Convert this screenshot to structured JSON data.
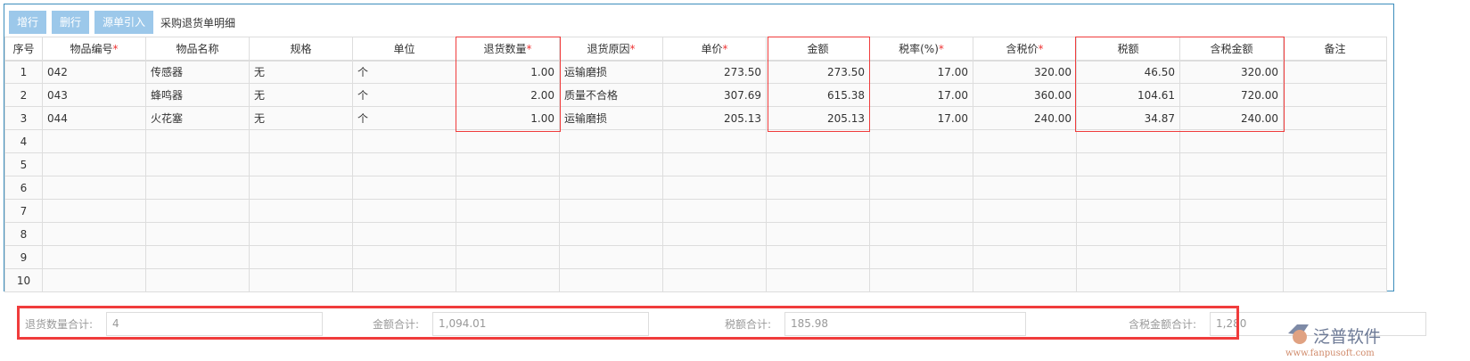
{
  "toolbar": {
    "add_row": "增行",
    "delete_row": "删行",
    "import_source": "源单引入",
    "title": "采购退货单明细"
  },
  "columns": [
    {
      "label": "序号",
      "required": false
    },
    {
      "label": "物品编号",
      "required": true
    },
    {
      "label": "物品名称",
      "required": false
    },
    {
      "label": "规格",
      "required": false
    },
    {
      "label": "单位",
      "required": false
    },
    {
      "label": "退货数量",
      "required": true
    },
    {
      "label": "退货原因",
      "required": true
    },
    {
      "label": "单价",
      "required": true
    },
    {
      "label": "金额",
      "required": false
    },
    {
      "label": "税率(%)",
      "required": true
    },
    {
      "label": "含税价",
      "required": true
    },
    {
      "label": "税额",
      "required": false
    },
    {
      "label": "含税金额",
      "required": false
    },
    {
      "label": "备注",
      "required": false
    }
  ],
  "rows": [
    [
      "1",
      "042",
      "传感器",
      "无",
      "个",
      "1.00",
      "运输磨损",
      "273.50",
      "273.50",
      "17.00",
      "320.00",
      "46.50",
      "320.00",
      ""
    ],
    [
      "2",
      "043",
      "蜂鸣器",
      "无",
      "个",
      "2.00",
      "质量不合格",
      "307.69",
      "615.38",
      "17.00",
      "360.00",
      "104.61",
      "720.00",
      ""
    ],
    [
      "3",
      "044",
      "火花塞",
      "无",
      "个",
      "1.00",
      "运输磨损",
      "205.13",
      "205.13",
      "17.00",
      "240.00",
      "34.87",
      "240.00",
      ""
    ],
    [
      "4",
      "",
      "",
      "",
      "",
      "",
      "",
      "",
      "",
      "",
      "",
      "",
      "",
      ""
    ],
    [
      "5",
      "",
      "",
      "",
      "",
      "",
      "",
      "",
      "",
      "",
      "",
      "",
      "",
      ""
    ],
    [
      "6",
      "",
      "",
      "",
      "",
      "",
      "",
      "",
      "",
      "",
      "",
      "",
      "",
      ""
    ],
    [
      "7",
      "",
      "",
      "",
      "",
      "",
      "",
      "",
      "",
      "",
      "",
      "",
      "",
      ""
    ],
    [
      "8",
      "",
      "",
      "",
      "",
      "",
      "",
      "",
      "",
      "",
      "",
      "",
      "",
      ""
    ],
    [
      "9",
      "",
      "",
      "",
      "",
      "",
      "",
      "",
      "",
      "",
      "",
      "",
      "",
      ""
    ],
    [
      "10",
      "",
      "",
      "",
      "",
      "",
      "",
      "",
      "",
      "",
      "",
      "",
      "",
      ""
    ]
  ],
  "totals": {
    "qty_label": "退货数量合计:",
    "qty": "4",
    "amount_label": "金额合计:",
    "amount": "1,094.01",
    "tax_label": "税额合计:",
    "tax": "185.98",
    "total_label": "含税金额合计:",
    "total": "1,280"
  },
  "logo": {
    "name": "泛普软件",
    "url": "www.fanpusoft.com"
  },
  "colors": {
    "button": "#9cc8ea",
    "highlight": "#f03c3c",
    "border": "#3c8dbc"
  }
}
